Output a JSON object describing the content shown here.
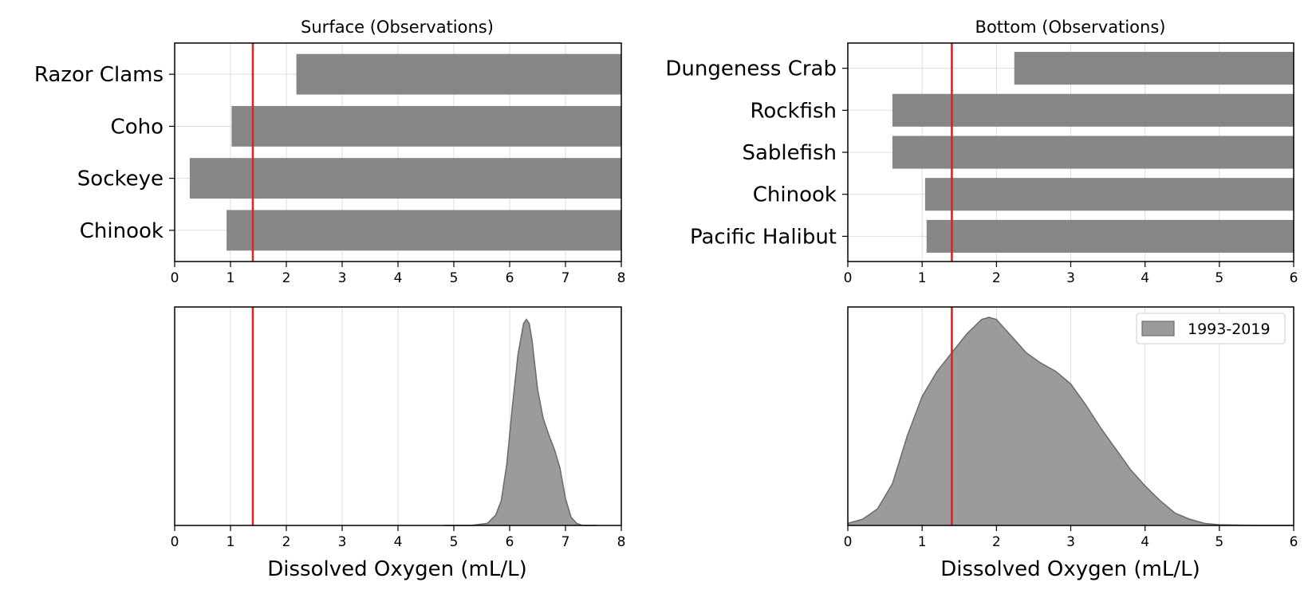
{
  "colors": {
    "bar": "#808080",
    "density_fill": "#9b9b9b",
    "density_line": "#6e6e6e",
    "threshold": "#d62728"
  },
  "chart_data": [
    {
      "id": "surface-bars",
      "type": "bar",
      "orientation": "horizontal",
      "title": "Surface (Observations)",
      "categories": [
        "Razor Clams",
        "Coho",
        "Sockeye",
        "Chinook"
      ],
      "values": [
        [
          2.18,
          8
        ],
        [
          1.02,
          8
        ],
        [
          0.27,
          8
        ],
        [
          0.93,
          8
        ]
      ],
      "xlim": [
        0,
        8
      ],
      "xticks": [
        0,
        1,
        2,
        3,
        4,
        5,
        6,
        7,
        8
      ],
      "threshold": 1.4,
      "grid": true
    },
    {
      "id": "bottom-bars",
      "type": "bar",
      "orientation": "horizontal",
      "title": "Bottom (Observations)",
      "categories": [
        "Dungeness Crab",
        "Rockfish",
        "Sablefish",
        "Chinook",
        "Pacific Halibut"
      ],
      "values": [
        [
          2.24,
          6
        ],
        [
          0.6,
          6
        ],
        [
          0.6,
          6
        ],
        [
          1.04,
          6
        ],
        [
          1.06,
          6
        ]
      ],
      "xlim": [
        0,
        6
      ],
      "xticks": [
        0,
        1,
        2,
        3,
        4,
        5,
        6
      ],
      "threshold": 1.4,
      "grid": true
    },
    {
      "id": "surface-density",
      "type": "area",
      "xlabel": "Dissolved Oxygen (mL/L)",
      "xlim": [
        0,
        8
      ],
      "xticks": [
        0,
        1,
        2,
        3,
        4,
        5,
        6,
        7,
        8
      ],
      "ylim": [
        0,
        1.06
      ],
      "threshold": 1.4,
      "grid": true,
      "x": [
        4.83,
        5.3,
        5.6,
        5.75,
        5.85,
        5.95,
        6.05,
        6.15,
        6.25,
        6.3,
        6.35,
        6.4,
        6.45,
        6.5,
        6.6,
        6.7,
        6.8,
        6.9,
        7.0,
        7.1,
        7.2,
        7.3,
        7.58
      ],
      "y": [
        0.0,
        0.0,
        0.01,
        0.05,
        0.12,
        0.3,
        0.58,
        0.83,
        0.98,
        1.0,
        0.98,
        0.9,
        0.78,
        0.66,
        0.52,
        0.44,
        0.37,
        0.28,
        0.13,
        0.04,
        0.01,
        0.0,
        0.0
      ]
    },
    {
      "id": "bottom-density",
      "type": "area",
      "xlabel": "Dissolved Oxygen (mL/L)",
      "xlim": [
        0,
        6
      ],
      "xticks": [
        0,
        1,
        2,
        3,
        4,
        5,
        6
      ],
      "ylim": [
        0,
        1.05
      ],
      "threshold": 1.4,
      "grid": true,
      "legend": {
        "label": "1993-2019",
        "placement": "upper right"
      },
      "x": [
        0,
        0.2,
        0.4,
        0.6,
        0.8,
        1.0,
        1.2,
        1.4,
        1.6,
        1.8,
        1.9,
        2.0,
        2.2,
        2.4,
        2.6,
        2.8,
        3.0,
        3.2,
        3.4,
        3.6,
        3.8,
        4.0,
        4.2,
        4.4,
        4.6,
        4.8,
        5.0,
        5.5,
        6.0
      ],
      "y": [
        0.01,
        0.03,
        0.08,
        0.2,
        0.43,
        0.62,
        0.74,
        0.83,
        0.92,
        0.99,
        1.0,
        0.99,
        0.91,
        0.83,
        0.78,
        0.74,
        0.68,
        0.58,
        0.47,
        0.37,
        0.27,
        0.19,
        0.12,
        0.06,
        0.03,
        0.01,
        0.003,
        0.0,
        0.0
      ]
    }
  ]
}
